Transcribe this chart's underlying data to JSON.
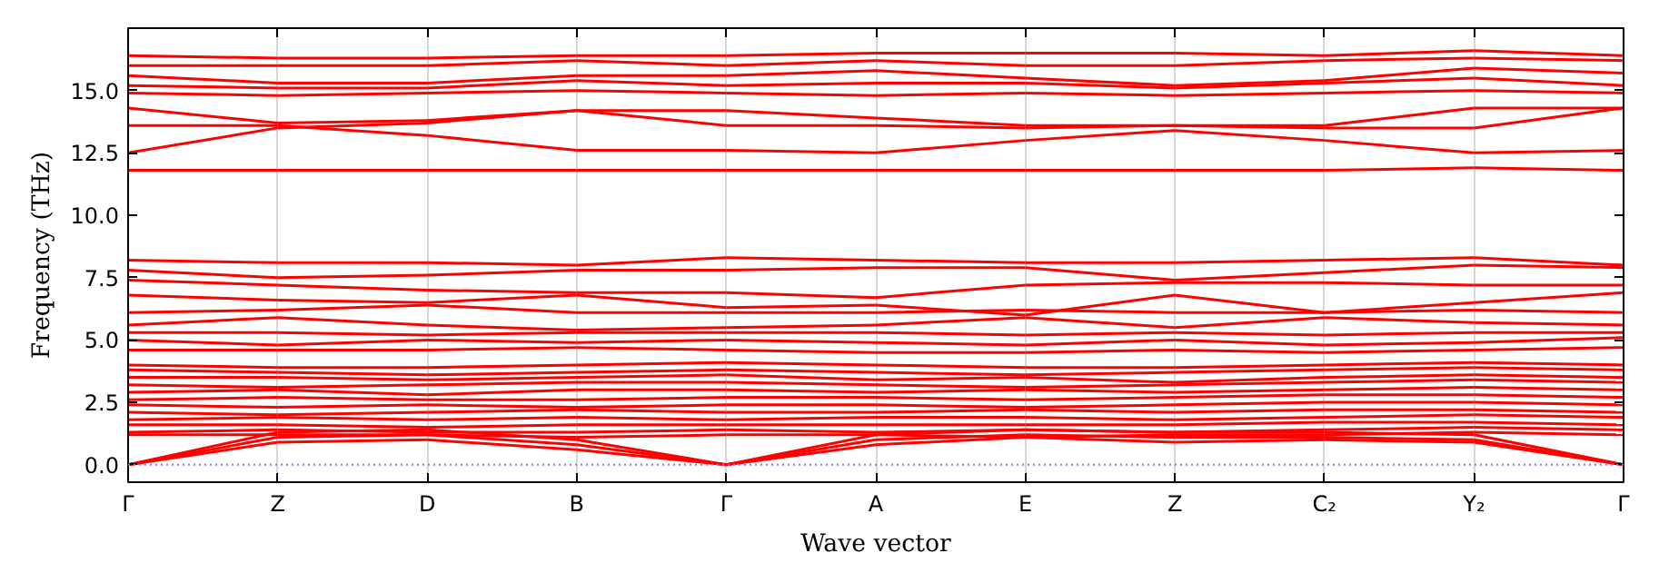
{
  "chart_data": {
    "type": "line",
    "xlabel": "Wave vector",
    "ylabel": "Frequency (THz)",
    "categories": [
      "Γ",
      "Z",
      "D",
      "B",
      "Γ",
      "A",
      "E",
      "Z",
      "C₂",
      "Y₂",
      "Γ"
    ],
    "ylim": [
      -0.7,
      17.5
    ],
    "yticks": [
      {
        "value": 0,
        "label": "0.0"
      },
      {
        "value": 2.5,
        "label": "2.5"
      },
      {
        "value": 5,
        "label": "5.0"
      },
      {
        "value": 7.5,
        "label": "7.5"
      },
      {
        "value": 10,
        "label": "10.0"
      },
      {
        "value": 12.5,
        "label": "12.5"
      },
      {
        "value": 15,
        "label": "15.0"
      }
    ],
    "grid": "x",
    "marker": "none",
    "line_style": "solid",
    "ref_lines": [
      {
        "axis": "y",
        "value": 0,
        "label": null,
        "color": "#7777ff",
        "line_style": "dotted"
      }
    ],
    "series": [
      {
        "color": "#ff0000",
        "values": [
          16.4,
          16.3,
          16.3,
          16.4,
          16.4,
          16.5,
          16.5,
          16.5,
          16.4,
          16.6,
          16.4
        ]
      },
      {
        "color": "#ff0000",
        "values": [
          16.0,
          16.0,
          16.0,
          16.2,
          16.0,
          16.2,
          16.0,
          16.0,
          16.2,
          16.3,
          16.2
        ]
      },
      {
        "color": "#ff0000",
        "values": [
          15.6,
          15.3,
          15.3,
          15.6,
          15.6,
          15.8,
          15.5,
          15.2,
          15.4,
          15.9,
          15.7
        ]
      },
      {
        "color": "#ff0000",
        "values": [
          15.2,
          15.1,
          15.1,
          15.4,
          15.2,
          15.3,
          15.3,
          15.1,
          15.3,
          15.5,
          15.2
        ]
      },
      {
        "color": "#ff0000",
        "values": [
          14.9,
          14.8,
          14.9,
          15.0,
          14.9,
          14.8,
          14.9,
          14.8,
          14.9,
          15.0,
          14.9
        ]
      },
      {
        "color": "#ff0000",
        "values": [
          14.3,
          13.7,
          13.8,
          14.2,
          14.2,
          13.9,
          13.6,
          13.6,
          13.6,
          14.3,
          14.3
        ]
      },
      {
        "color": "#ff0000",
        "values": [
          13.6,
          13.6,
          13.2,
          12.6,
          12.6,
          12.5,
          13.0,
          13.4,
          13.0,
          12.5,
          12.6
        ]
      },
      {
        "color": "#ff0000",
        "values": [
          12.5,
          13.5,
          13.7,
          14.2,
          13.6,
          13.6,
          13.5,
          13.6,
          13.5,
          13.5,
          14.3
        ]
      },
      {
        "color": "#ff0000",
        "values": [
          11.8,
          11.8,
          11.8,
          11.8,
          11.8,
          11.8,
          11.8,
          11.8,
          11.8,
          11.9,
          11.8
        ]
      },
      {
        "color": "#ff0000",
        "values": [
          8.2,
          8.1,
          8.1,
          8.0,
          8.3,
          8.2,
          8.1,
          8.1,
          8.2,
          8.3,
          8.0
        ]
      },
      {
        "color": "#ff0000",
        "values": [
          7.8,
          7.5,
          7.6,
          7.8,
          7.8,
          7.9,
          7.9,
          7.4,
          7.7,
          8.0,
          7.9
        ]
      },
      {
        "color": "#ff0000",
        "values": [
          7.4,
          7.2,
          7.0,
          6.9,
          6.9,
          6.7,
          7.2,
          7.3,
          7.3,
          7.2,
          7.2
        ]
      },
      {
        "color": "#ff0000",
        "values": [
          6.8,
          6.6,
          6.5,
          6.8,
          6.3,
          6.4,
          6.0,
          6.8,
          6.1,
          6.5,
          6.9
        ]
      },
      {
        "color": "#ff0000",
        "values": [
          6.1,
          6.2,
          6.4,
          6.1,
          6.1,
          6.1,
          6.2,
          6.1,
          6.1,
          6.2,
          6.1
        ]
      },
      {
        "color": "#ff0000",
        "values": [
          5.6,
          5.9,
          5.6,
          5.4,
          5.5,
          5.6,
          5.9,
          5.5,
          5.9,
          5.7,
          5.6
        ]
      },
      {
        "color": "#ff0000",
        "values": [
          5.3,
          5.3,
          5.2,
          5.3,
          5.3,
          5.3,
          5.2,
          5.3,
          5.2,
          5.3,
          5.3
        ]
      },
      {
        "color": "#ff0000",
        "values": [
          5.0,
          4.8,
          5.0,
          4.9,
          5.0,
          4.9,
          4.8,
          5.0,
          4.8,
          4.9,
          5.1
        ]
      },
      {
        "color": "#ff0000",
        "values": [
          4.6,
          4.6,
          4.6,
          4.7,
          4.6,
          4.5,
          4.5,
          4.6,
          4.5,
          4.6,
          4.7
        ]
      },
      {
        "color": "#ff0000",
        "values": [
          4.0,
          3.9,
          3.9,
          4.0,
          4.1,
          4.0,
          3.9,
          3.9,
          4.0,
          4.1,
          4.0
        ]
      },
      {
        "color": "#ff0000",
        "values": [
          3.8,
          3.7,
          3.6,
          3.7,
          3.8,
          3.7,
          3.6,
          3.7,
          3.8,
          3.9,
          3.8
        ]
      },
      {
        "color": "#ff0000",
        "values": [
          3.5,
          3.5,
          3.4,
          3.5,
          3.6,
          3.4,
          3.5,
          3.3,
          3.5,
          3.6,
          3.5
        ]
      },
      {
        "color": "#ff0000",
        "values": [
          3.2,
          3.1,
          3.2,
          3.3,
          3.3,
          3.2,
          3.1,
          3.2,
          3.3,
          3.4,
          3.3
        ]
      },
      {
        "color": "#ff0000",
        "values": [
          2.9,
          3.0,
          2.8,
          3.0,
          3.0,
          2.9,
          3.0,
          2.9,
          3.0,
          3.1,
          3.0
        ]
      },
      {
        "color": "#ff0000",
        "values": [
          2.6,
          2.7,
          2.6,
          2.6,
          2.7,
          2.7,
          2.6,
          2.7,
          2.8,
          2.8,
          2.7
        ]
      },
      {
        "color": "#ff0000",
        "values": [
          2.4,
          2.3,
          2.4,
          2.3,
          2.4,
          2.4,
          2.3,
          2.4,
          2.5,
          2.5,
          2.4
        ]
      },
      {
        "color": "#ff0000",
        "values": [
          2.1,
          2.0,
          2.1,
          2.2,
          2.1,
          2.1,
          2.2,
          2.1,
          2.2,
          2.2,
          2.1
        ]
      },
      {
        "color": "#ff0000",
        "values": [
          1.8,
          1.9,
          1.8,
          1.9,
          1.8,
          1.9,
          1.9,
          1.8,
          1.9,
          2.0,
          1.9
        ]
      },
      {
        "color": "#ff0000",
        "values": [
          1.6,
          1.6,
          1.5,
          1.6,
          1.6,
          1.6,
          1.6,
          1.6,
          1.7,
          1.7,
          1.6
        ]
      },
      {
        "color": "#ff0000",
        "values": [
          1.3,
          1.4,
          1.3,
          1.3,
          1.4,
          1.3,
          1.4,
          1.3,
          1.4,
          1.5,
          1.4
        ]
      },
      {
        "color": "#ff0000",
        "values": [
          1.2,
          1.2,
          1.2,
          1.1,
          1.2,
          1.2,
          1.1,
          1.2,
          1.2,
          1.3,
          1.2
        ]
      },
      {
        "color": "#ff0000",
        "values": [
          0,
          1.3,
          1.4,
          1.0,
          0,
          1.2,
          1.4,
          1.3,
          1.3,
          1.2,
          0
        ]
      },
      {
        "color": "#ff0000",
        "values": [
          0,
          1.1,
          1.2,
          0.8,
          0,
          1.0,
          1.2,
          1.1,
          1.1,
          1.0,
          0
        ]
      },
      {
        "color": "#ff0000",
        "values": [
          0,
          0.9,
          1.0,
          0.6,
          0,
          0.8,
          1.1,
          0.9,
          1.0,
          0.9,
          0
        ]
      }
    ]
  }
}
